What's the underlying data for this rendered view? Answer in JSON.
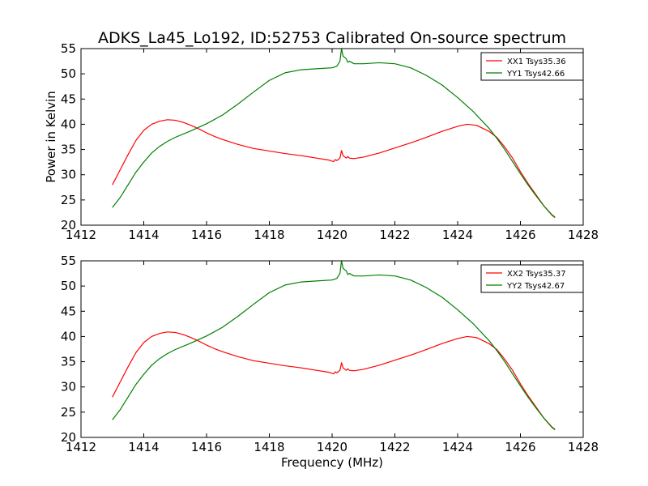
{
  "figure": {
    "title": "ADKS_La45_Lo192, ID:52753 Calibrated On-source spectrum",
    "ylabel": "Power in Kelvin",
    "xlabel": "Frequency (MHz)"
  },
  "colors": {
    "xx": "#ff0000",
    "yy": "#008000",
    "axes": "#000000",
    "background": "#ffffff"
  },
  "chart_data": [
    {
      "type": "line",
      "title": "ADKS_La45_Lo192, ID:52753 Calibrated On-source spectrum",
      "xlabel": "",
      "ylabel": "Power in Kelvin",
      "xlim": [
        1412,
        1428
      ],
      "ylim": [
        20,
        55
      ],
      "xticks": [
        1412,
        1414,
        1416,
        1418,
        1420,
        1422,
        1424,
        1426,
        1428
      ],
      "yticks": [
        20,
        25,
        30,
        35,
        40,
        45,
        50,
        55
      ],
      "grid": false,
      "legend_position": "top-right",
      "series": [
        {
          "name": "XX1 Tsys35.36",
          "color": "#ff0000",
          "x": [
            1413.0,
            1413.25,
            1413.5,
            1413.75,
            1414.0,
            1414.25,
            1414.5,
            1414.75,
            1415.0,
            1415.25,
            1415.5,
            1415.75,
            1416.0,
            1416.25,
            1416.5,
            1417.0,
            1417.5,
            1418.0,
            1418.5,
            1419.0,
            1419.5,
            1419.9,
            1420.05,
            1420.1,
            1420.15,
            1420.25,
            1420.3,
            1420.35,
            1420.45,
            1420.5,
            1420.55,
            1420.7,
            1421.0,
            1421.5,
            1422.0,
            1422.5,
            1423.0,
            1423.5,
            1424.0,
            1424.3,
            1424.6,
            1425.0,
            1425.25,
            1425.5,
            1425.75,
            1426.0,
            1426.25,
            1426.5,
            1426.75,
            1427.0,
            1427.1
          ],
          "y": [
            28.0,
            31.0,
            34.0,
            36.8,
            38.8,
            40.0,
            40.6,
            40.9,
            40.8,
            40.4,
            39.8,
            39.1,
            38.3,
            37.6,
            37.0,
            36.0,
            35.2,
            34.7,
            34.2,
            33.8,
            33.3,
            32.9,
            32.6,
            33.0,
            32.8,
            33.3,
            34.8,
            33.8,
            33.3,
            33.6,
            33.3,
            33.2,
            33.5,
            34.3,
            35.3,
            36.3,
            37.4,
            38.6,
            39.6,
            40.0,
            39.8,
            38.6,
            37.4,
            35.5,
            33.3,
            30.6,
            28.2,
            26.0,
            23.8,
            22.1,
            21.6
          ]
        },
        {
          "name": "YY1 Tsys42.66",
          "color": "#008000",
          "x": [
            1413.0,
            1413.25,
            1413.5,
            1413.75,
            1414.0,
            1414.25,
            1414.5,
            1414.75,
            1415.0,
            1415.5,
            1416.0,
            1416.5,
            1417.0,
            1417.5,
            1418.0,
            1418.5,
            1419.0,
            1419.5,
            1420.0,
            1420.15,
            1420.25,
            1420.3,
            1420.35,
            1420.45,
            1420.5,
            1420.55,
            1420.7,
            1421.0,
            1421.5,
            1422.0,
            1422.5,
            1423.0,
            1423.5,
            1424.0,
            1424.5,
            1425.0,
            1425.25,
            1425.5,
            1425.75,
            1426.0,
            1426.25,
            1426.5,
            1426.75,
            1427.0,
            1427.1
          ],
          "y": [
            23.5,
            25.5,
            28.0,
            30.5,
            32.5,
            34.3,
            35.6,
            36.6,
            37.4,
            38.7,
            40.1,
            41.8,
            44.0,
            46.4,
            48.7,
            50.2,
            50.8,
            51.0,
            51.2,
            51.5,
            52.5,
            55.0,
            53.5,
            53.0,
            52.3,
            52.5,
            52.0,
            52.0,
            52.2,
            52.0,
            51.2,
            49.7,
            47.8,
            45.3,
            42.5,
            39.2,
            37.2,
            35.0,
            32.6,
            30.2,
            27.9,
            25.8,
            23.8,
            22.0,
            21.5
          ]
        }
      ]
    },
    {
      "type": "line",
      "title": "",
      "xlabel": "Frequency (MHz)",
      "ylabel": "",
      "xlim": [
        1412,
        1428
      ],
      "ylim": [
        20,
        55
      ],
      "xticks": [
        1412,
        1414,
        1416,
        1418,
        1420,
        1422,
        1424,
        1426,
        1428
      ],
      "yticks": [
        20,
        25,
        30,
        35,
        40,
        45,
        50,
        55
      ],
      "grid": false,
      "legend_position": "top-right",
      "series": [
        {
          "name": "XX2 Tsys35.37",
          "color": "#ff0000",
          "x": [
            1413.0,
            1413.25,
            1413.5,
            1413.75,
            1414.0,
            1414.25,
            1414.5,
            1414.75,
            1415.0,
            1415.25,
            1415.5,
            1415.75,
            1416.0,
            1416.25,
            1416.5,
            1417.0,
            1417.5,
            1418.0,
            1418.5,
            1419.0,
            1419.5,
            1419.9,
            1420.05,
            1420.1,
            1420.15,
            1420.25,
            1420.3,
            1420.35,
            1420.45,
            1420.5,
            1420.55,
            1420.7,
            1421.0,
            1421.5,
            1422.0,
            1422.5,
            1423.0,
            1423.5,
            1424.0,
            1424.3,
            1424.6,
            1425.0,
            1425.25,
            1425.5,
            1425.75,
            1426.0,
            1426.25,
            1426.5,
            1426.75,
            1427.0,
            1427.1
          ],
          "y": [
            28.0,
            31.0,
            34.0,
            36.8,
            38.8,
            40.0,
            40.6,
            40.9,
            40.8,
            40.4,
            39.8,
            39.1,
            38.3,
            37.6,
            37.0,
            36.0,
            35.2,
            34.7,
            34.2,
            33.8,
            33.3,
            32.9,
            32.6,
            33.0,
            32.8,
            33.3,
            34.8,
            33.8,
            33.3,
            33.6,
            33.3,
            33.2,
            33.5,
            34.3,
            35.3,
            36.3,
            37.4,
            38.6,
            39.6,
            40.0,
            39.8,
            38.6,
            37.4,
            35.5,
            33.3,
            30.6,
            28.2,
            26.0,
            23.8,
            22.1,
            21.6
          ]
        },
        {
          "name": "YY2 Tsys42.67",
          "color": "#008000",
          "x": [
            1413.0,
            1413.25,
            1413.5,
            1413.75,
            1414.0,
            1414.25,
            1414.5,
            1414.75,
            1415.0,
            1415.5,
            1416.0,
            1416.5,
            1417.0,
            1417.5,
            1418.0,
            1418.5,
            1419.0,
            1419.5,
            1420.0,
            1420.15,
            1420.25,
            1420.3,
            1420.35,
            1420.45,
            1420.5,
            1420.55,
            1420.7,
            1421.0,
            1421.5,
            1422.0,
            1422.5,
            1423.0,
            1423.5,
            1424.0,
            1424.5,
            1425.0,
            1425.25,
            1425.5,
            1425.75,
            1426.0,
            1426.25,
            1426.5,
            1426.75,
            1427.0,
            1427.1
          ],
          "y": [
            23.5,
            25.5,
            28.0,
            30.5,
            32.5,
            34.3,
            35.6,
            36.6,
            37.4,
            38.7,
            40.1,
            41.8,
            44.0,
            46.4,
            48.7,
            50.2,
            50.8,
            51.0,
            51.2,
            51.5,
            52.5,
            55.0,
            53.5,
            53.0,
            52.3,
            52.5,
            52.0,
            52.0,
            52.2,
            52.0,
            51.2,
            49.7,
            47.8,
            45.3,
            42.5,
            39.2,
            37.2,
            35.0,
            32.6,
            30.2,
            27.9,
            25.8,
            23.8,
            22.0,
            21.5
          ]
        }
      ]
    }
  ]
}
